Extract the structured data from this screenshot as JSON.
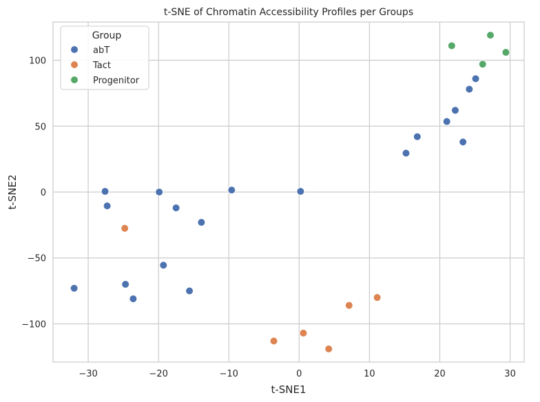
{
  "chart_data": {
    "type": "scatter",
    "title": "t-SNE of Chromatin Accessibility Profiles per Groups",
    "xlabel": "t-SNE1",
    "ylabel": "t-SNE2",
    "xlim": [
      -35,
      32
    ],
    "ylim": [
      -129,
      129
    ],
    "xticks": [
      -30,
      -20,
      -10,
      0,
      10,
      20,
      30
    ],
    "xtick_labels": [
      "−30",
      "−20",
      "−10",
      "0",
      "10",
      "20",
      "30"
    ],
    "yticks": [
      -100,
      -50,
      0,
      50,
      100
    ],
    "ytick_labels": [
      "−100",
      "−50",
      "0",
      "50",
      "100"
    ],
    "grid": true,
    "legend": {
      "title": "Group",
      "placement": "top-left"
    },
    "series": [
      {
        "name": "abT",
        "color": "#4c72b0",
        "points": [
          {
            "x": -32.0,
            "y": -73
          },
          {
            "x": -27.6,
            "y": 0.5
          },
          {
            "x": -27.3,
            "y": -10.5
          },
          {
            "x": -24.7,
            "y": -70
          },
          {
            "x": -23.6,
            "y": -81
          },
          {
            "x": -19.9,
            "y": 0
          },
          {
            "x": -19.3,
            "y": -55.5
          },
          {
            "x": -17.5,
            "y": -12
          },
          {
            "x": -15.6,
            "y": -75
          },
          {
            "x": -13.9,
            "y": -23
          },
          {
            "x": -9.6,
            "y": 1.5
          },
          {
            "x": 0.2,
            "y": 0.5
          },
          {
            "x": 15.2,
            "y": 29.5
          },
          {
            "x": 16.8,
            "y": 42
          },
          {
            "x": 21.0,
            "y": 53.5
          },
          {
            "x": 22.2,
            "y": 62
          },
          {
            "x": 23.3,
            "y": 38
          },
          {
            "x": 24.2,
            "y": 78
          },
          {
            "x": 25.1,
            "y": 86
          }
        ]
      },
      {
        "name": "Tact",
        "color": "#dd8452",
        "points": [
          {
            "x": -24.8,
            "y": -27.5
          },
          {
            "x": -3.6,
            "y": -113
          },
          {
            "x": 0.6,
            "y": -107
          },
          {
            "x": 4.2,
            "y": -119
          },
          {
            "x": 7.1,
            "y": -86
          },
          {
            "x": 11.1,
            "y": -80
          }
        ]
      },
      {
        "name": "Progenitor",
        "color": "#55a868",
        "points": [
          {
            "x": 21.7,
            "y": 111
          },
          {
            "x": 26.1,
            "y": 97
          },
          {
            "x": 27.2,
            "y": 119
          },
          {
            "x": 29.4,
            "y": 106
          }
        ]
      }
    ]
  }
}
